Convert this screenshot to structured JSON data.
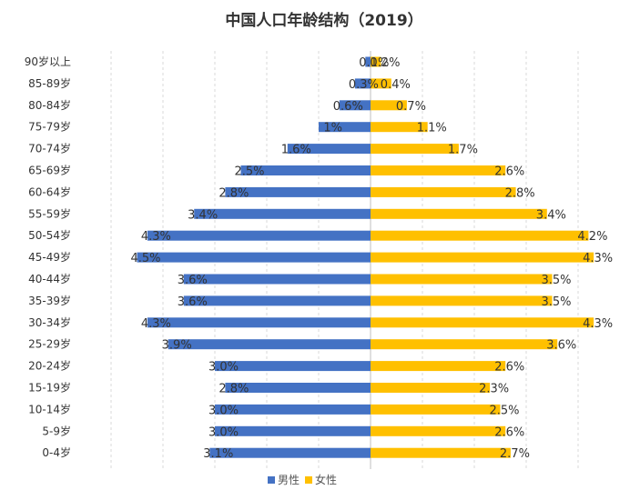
{
  "chart_data": {
    "type": "bar",
    "orientation": "horizontal-diverging",
    "title": "中国人口年龄结构（2019）",
    "categories": [
      "0-4岁",
      "5-9岁",
      "10-14岁",
      "15-19岁",
      "20-24岁",
      "25-29岁",
      "30-34岁",
      "35-39岁",
      "40-44岁",
      "45-49岁",
      "50-54岁",
      "55-59岁",
      "60-64岁",
      "65-69岁",
      "70-74岁",
      "75-79岁",
      "80-84岁",
      "85-89岁",
      "90岁以上"
    ],
    "series": [
      {
        "name": "男性",
        "color": "#4472C4",
        "values": [
          3.1,
          3.0,
          3.0,
          2.8,
          3.0,
          3.9,
          4.3,
          3.6,
          3.6,
          4.5,
          4.3,
          3.4,
          2.8,
          2.5,
          1.6,
          1,
          0.6,
          0.3,
          0.1
        ],
        "labels": [
          "3.1%",
          "3.0%",
          "3.0%",
          "2.8%",
          "3.0%",
          "3.9%",
          "4.3%",
          "3.6%",
          "3.6%",
          "4.5%",
          "4.3%",
          "3.4%",
          "2.8%",
          "2.5%",
          "1.6%",
          "1%",
          "0.6%",
          "0.3%",
          "0.1%"
        ]
      },
      {
        "name": "女性",
        "color": "#FFC000",
        "values": [
          2.7,
          2.6,
          2.5,
          2.3,
          2.6,
          3.6,
          4.3,
          3.5,
          3.5,
          4.3,
          4.2,
          3.4,
          2.8,
          2.6,
          1.7,
          1.1,
          0.7,
          0.4,
          0.2
        ],
        "labels": [
          "2.7%",
          "2.6%",
          "2.5%",
          "2.3%",
          "2.6%",
          "3.6%",
          "4.3%",
          "3.5%",
          "3.5%",
          "4.3%",
          "4.2%",
          "3.4%",
          "2.8%",
          "2.6%",
          "1.7%",
          "1.1%",
          "0.7%",
          "0.4%",
          "0.2%"
        ]
      }
    ],
    "xlim": [
      -5,
      5
    ],
    "grid": true,
    "legend": "bottom-center"
  }
}
